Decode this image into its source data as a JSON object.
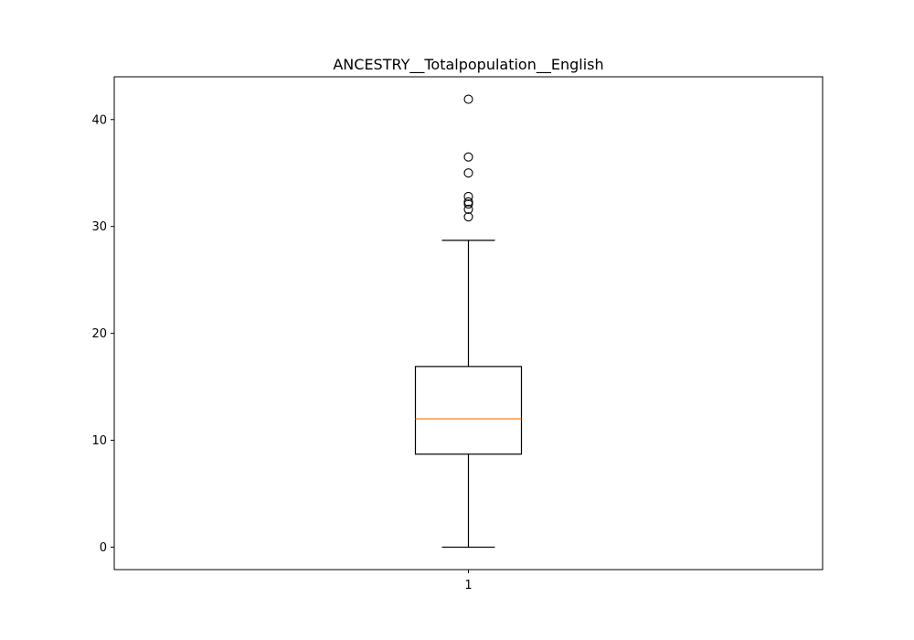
{
  "chart_data": {
    "type": "box",
    "title": "ANCESTRY__Totalpopulation__English",
    "xlabel": "",
    "ylabel": "",
    "categories": [
      "1"
    ],
    "boxes": [
      {
        "category": "1",
        "whisker_low": 0,
        "q1": 8.7,
        "median": 12.0,
        "q3": 16.9,
        "whisker_high": 28.7,
        "outliers": [
          30.9,
          31.6,
          32.1,
          32.3,
          32.8,
          35.0,
          36.5,
          41.9
        ]
      }
    ],
    "ylim": [
      -2.1,
      44.0
    ],
    "yticks": [
      0,
      10,
      20,
      30,
      40
    ],
    "grid": false,
    "colors": {
      "box": "#000000",
      "median": "#ff7f0e",
      "outlier_edge": "#000000"
    }
  }
}
